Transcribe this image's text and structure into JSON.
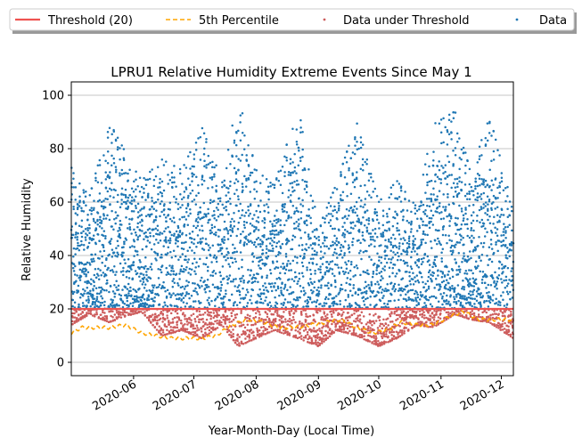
{
  "chart_data": {
    "type": "scatter",
    "title": "LPRU1 Relative Humidity Extreme Events Since May 1",
    "xlabel": "Year-Month-Day (Local Time)",
    "ylabel": "Relative Humidity",
    "xlim": [
      "2020-05-01",
      "2020-12-07"
    ],
    "ylim": [
      -5,
      105
    ],
    "y_ticks": [
      0,
      20,
      40,
      60,
      80,
      100
    ],
    "x_ticks": [
      "2020-06-01",
      "2020-07-01",
      "2020-08-01",
      "2020-09-01",
      "2020-10-01",
      "2020-11-01",
      "2020-12-01"
    ],
    "x_tick_labels": [
      "2020-06",
      "2020-07",
      "2020-08",
      "2020-09",
      "2020-10",
      "2020-11",
      "2020-12"
    ],
    "grid": "horizontal",
    "legend_position": "top",
    "threshold": 20,
    "legend": [
      {
        "key": "threshold",
        "label": "Threshold (20)",
        "color": "#ef5350"
      },
      {
        "key": "pct5",
        "label": "5th Percentile",
        "color": "#ffa500"
      },
      {
        "key": "under",
        "label": "Data under Threshold",
        "color": "#cd5c5c"
      },
      {
        "key": "data",
        "label": "Data",
        "color": "#1f77b4"
      }
    ],
    "percentile_5": {
      "x": [
        "2020-05-01",
        "2020-05-06",
        "2020-05-12",
        "2020-05-20",
        "2020-05-28",
        "2020-06-05",
        "2020-06-12",
        "2020-06-20",
        "2020-06-28",
        "2020-07-05",
        "2020-07-12",
        "2020-07-20",
        "2020-07-28",
        "2020-08-05",
        "2020-08-12",
        "2020-08-20",
        "2020-08-28",
        "2020-09-05",
        "2020-09-12",
        "2020-09-20",
        "2020-09-28",
        "2020-10-05",
        "2020-10-12",
        "2020-10-20",
        "2020-10-28",
        "2020-11-05",
        "2020-11-12",
        "2020-11-20",
        "2020-11-28",
        "2020-12-07"
      ],
      "y": [
        11,
        13,
        13,
        13,
        14,
        11,
        10,
        9,
        9,
        9,
        10,
        14,
        16,
        15,
        13,
        13,
        14,
        15,
        16,
        13,
        11,
        12,
        15,
        14,
        14,
        17,
        19,
        16,
        16,
        16
      ]
    },
    "data_envelope": {
      "x": [
        "2020-05-01",
        "2020-05-10",
        "2020-05-20",
        "2020-05-27",
        "2020-06-05",
        "2020-06-15",
        "2020-06-25",
        "2020-07-05",
        "2020-07-15",
        "2020-07-23",
        "2020-08-01",
        "2020-08-10",
        "2020-08-22",
        "2020-09-01",
        "2020-09-10",
        "2020-09-20",
        "2020-10-01",
        "2020-10-10",
        "2020-10-20",
        "2020-10-28",
        "2020-11-08",
        "2020-11-16",
        "2020-11-25",
        "2020-12-07"
      ],
      "max": [
        73,
        62,
        90,
        80,
        68,
        76,
        72,
        88,
        68,
        100,
        72,
        66,
        96,
        50,
        67,
        90,
        60,
        68,
        58,
        89,
        94,
        70,
        93,
        57
      ],
      "min": [
        14,
        18,
        15,
        17,
        19,
        10,
        12,
        9,
        14,
        6,
        9,
        12,
        9,
        6,
        12,
        10,
        6,
        9,
        14,
        13,
        18,
        16,
        15,
        9
      ]
    }
  }
}
